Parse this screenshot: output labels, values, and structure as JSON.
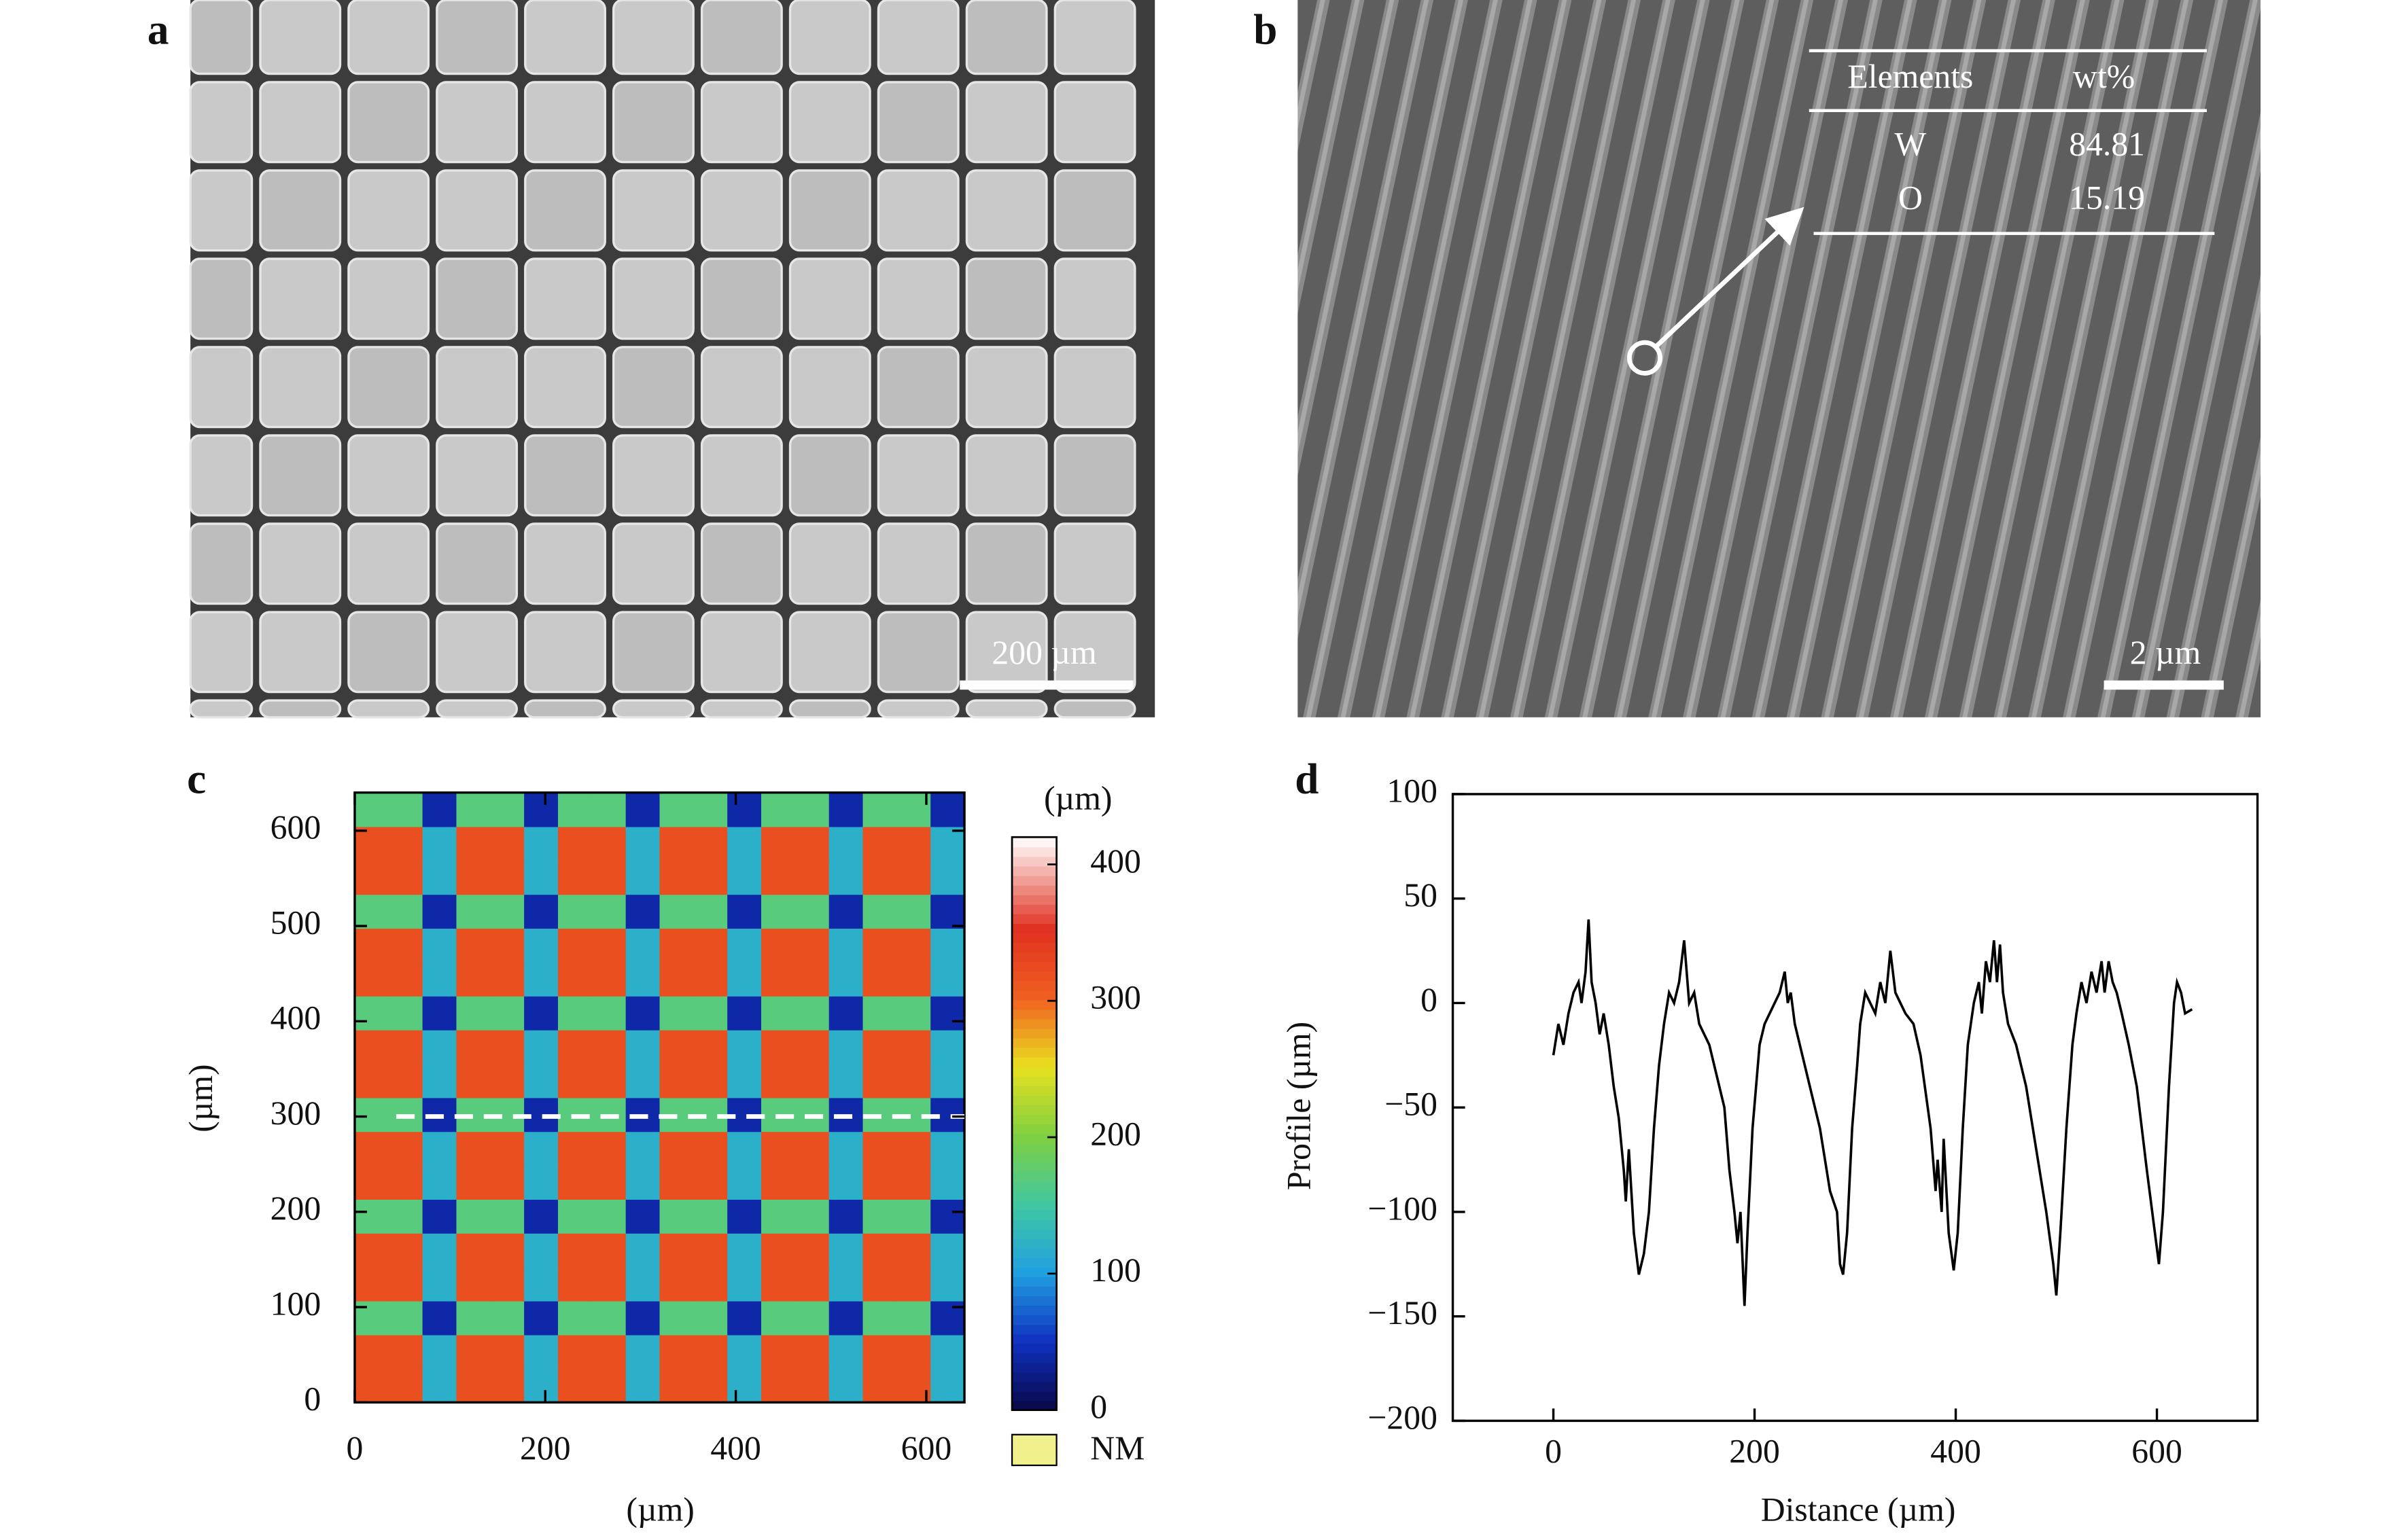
{
  "figure": {
    "panels": [
      "a",
      "b",
      "c",
      "d"
    ],
    "scale_bars": [
      "200 µm",
      "2 µm"
    ],
    "table": {
      "header": [
        "Elements",
        "wt%"
      ],
      "rows": [
        [
          "W",
          "84.81"
        ],
        [
          "O",
          "15.19"
        ]
      ]
    }
  },
  "chart_data": [
    {
      "type": "heatmap",
      "x_label": "(µm)",
      "y_label": "(µm)",
      "xlim": [
        0,
        640
      ],
      "ylim": [
        0,
        640
      ],
      "xticks": [
        0,
        200,
        400,
        600
      ],
      "yticks": [
        0,
        100,
        200,
        300,
        400,
        500,
        600
      ],
      "z": [
        [
          320,
          320,
          120,
          320,
          320,
          120,
          320,
          320,
          120,
          320,
          320,
          120,
          320,
          320,
          120,
          320,
          320,
          120
        ],
        [
          320,
          320,
          120,
          320,
          320,
          120,
          320,
          320,
          120,
          320,
          320,
          120,
          320,
          320,
          120,
          320,
          320,
          120
        ],
        [
          170,
          170,
          40,
          170,
          170,
          40,
          170,
          170,
          40,
          170,
          170,
          40,
          170,
          170,
          40,
          170,
          170,
          40
        ],
        [
          320,
          320,
          120,
          320,
          320,
          120,
          320,
          320,
          120,
          320,
          320,
          120,
          320,
          320,
          120,
          320,
          320,
          120
        ],
        [
          320,
          320,
          120,
          320,
          320,
          120,
          320,
          320,
          120,
          320,
          320,
          120,
          320,
          320,
          120,
          320,
          320,
          120
        ],
        [
          170,
          170,
          40,
          170,
          170,
          40,
          170,
          170,
          40,
          170,
          170,
          40,
          170,
          170,
          40,
          170,
          170,
          40
        ],
        [
          320,
          320,
          120,
          320,
          320,
          120,
          320,
          320,
          120,
          320,
          320,
          120,
          320,
          320,
          120,
          320,
          320,
          120
        ],
        [
          320,
          320,
          120,
          320,
          320,
          120,
          320,
          320,
          120,
          320,
          320,
          120,
          320,
          320,
          120,
          320,
          320,
          120
        ],
        [
          170,
          170,
          40,
          170,
          170,
          40,
          170,
          170,
          40,
          170,
          170,
          40,
          170,
          170,
          40,
          170,
          170,
          40
        ],
        [
          320,
          320,
          120,
          320,
          320,
          120,
          320,
          320,
          120,
          320,
          320,
          120,
          320,
          320,
          120,
          320,
          320,
          120
        ],
        [
          320,
          320,
          120,
          320,
          320,
          120,
          320,
          320,
          120,
          320,
          320,
          120,
          320,
          320,
          120,
          320,
          320,
          120
        ],
        [
          170,
          170,
          40,
          170,
          170,
          40,
          170,
          170,
          40,
          170,
          170,
          40,
          170,
          170,
          40,
          170,
          170,
          40
        ],
        [
          320,
          320,
          120,
          320,
          320,
          120,
          320,
          320,
          120,
          320,
          320,
          120,
          320,
          320,
          120,
          320,
          320,
          120
        ],
        [
          320,
          320,
          120,
          320,
          320,
          120,
          320,
          320,
          120,
          320,
          320,
          120,
          320,
          320,
          120,
          320,
          320,
          120
        ],
        [
          170,
          170,
          40,
          170,
          170,
          40,
          170,
          170,
          40,
          170,
          170,
          40,
          170,
          170,
          40,
          170,
          170,
          40
        ],
        [
          320,
          320,
          120,
          320,
          320,
          120,
          320,
          320,
          120,
          320,
          320,
          120,
          320,
          320,
          120,
          320,
          320,
          120
        ],
        [
          320,
          320,
          120,
          320,
          320,
          120,
          320,
          320,
          120,
          320,
          320,
          120,
          320,
          320,
          120,
          320,
          320,
          120
        ],
        [
          170,
          170,
          40,
          170,
          170,
          40,
          170,
          170,
          40,
          170,
          170,
          40,
          170,
          170,
          40,
          170,
          170,
          40
        ]
      ],
      "colorbar": {
        "label": "(µm)",
        "lim": [
          0,
          420
        ],
        "ticks": [
          0,
          100,
          200,
          300,
          400
        ]
      },
      "nm_label": "NM",
      "nm_color": "#f0f08c",
      "dashed_line_y": 300
    },
    {
      "type": "line",
      "x_label": "Distance (µm)",
      "y_label": "Profile (µm)",
      "xlim": [
        -100,
        700
      ],
      "ylim": [
        -200,
        100
      ],
      "xticks": [
        0,
        200,
        400,
        600
      ],
      "yticks": [
        100,
        50,
        0,
        {
          "value": -50,
          "label": "−50"
        },
        {
          "value": -100,
          "label": "−100"
        },
        {
          "value": -150,
          "label": "−150"
        },
        {
          "value": -200,
          "label": "−200"
        }
      ],
      "x": [
        0,
        5,
        10,
        15,
        20,
        25,
        28,
        32,
        35,
        38,
        42,
        46,
        50,
        55,
        60,
        65,
        70,
        72,
        75,
        80,
        85,
        90,
        95,
        100,
        105,
        110,
        115,
        120,
        125,
        130,
        135,
        140,
        145,
        150,
        155,
        160,
        170,
        175,
        180,
        183,
        186,
        190,
        193,
        198,
        205,
        210,
        215,
        220,
        225,
        230,
        233,
        236,
        240,
        245,
        255,
        265,
        275,
        282,
        285,
        288,
        292,
        297,
        302,
        305,
        310,
        315,
        320,
        325,
        330,
        335,
        340,
        345,
        350,
        358,
        365,
        375,
        380,
        382,
        386,
        388,
        393,
        398,
        402,
        407,
        412,
        418,
        423,
        426,
        430,
        434,
        438,
        441,
        444,
        447,
        452,
        460,
        470,
        480,
        490,
        497,
        500,
        504,
        510,
        516,
        520,
        525,
        530,
        535,
        540,
        545,
        548,
        552,
        556,
        560,
        565,
        572,
        580,
        590,
        598,
        602,
        606,
        612,
        617,
        620,
        624,
        628,
        635
      ],
      "series": [
        {
          "color": "#000000",
          "values": [
            -25,
            -10,
            -20,
            -5,
            5,
            10,
            0,
            15,
            40,
            10,
            0,
            -15,
            -5,
            -20,
            -40,
            -55,
            -80,
            -95,
            -70,
            -110,
            -130,
            -120,
            -100,
            -60,
            -30,
            -10,
            5,
            0,
            10,
            30,
            0,
            5,
            -10,
            -15,
            -20,
            -30,
            -50,
            -80,
            -100,
            -115,
            -100,
            -145,
            -110,
            -60,
            -20,
            -10,
            -5,
            0,
            5,
            15,
            0,
            5,
            -10,
            -20,
            -40,
            -60,
            -90,
            -100,
            -125,
            -130,
            -110,
            -60,
            -30,
            -10,
            5,
            0,
            -5,
            10,
            0,
            25,
            5,
            0,
            -5,
            -10,
            -25,
            -60,
            -90,
            -75,
            -100,
            -65,
            -110,
            -128,
            -110,
            -60,
            -20,
            0,
            10,
            -5,
            20,
            10,
            30,
            10,
            28,
            5,
            -10,
            -20,
            -40,
            -70,
            -100,
            -125,
            -140,
            -110,
            -60,
            -20,
            -5,
            10,
            0,
            15,
            5,
            20,
            5,
            20,
            10,
            5,
            -5,
            -20,
            -40,
            -80,
            -110,
            -125,
            -100,
            -40,
            0,
            10,
            5,
            -5,
            -3
          ]
        }
      ]
    }
  ]
}
